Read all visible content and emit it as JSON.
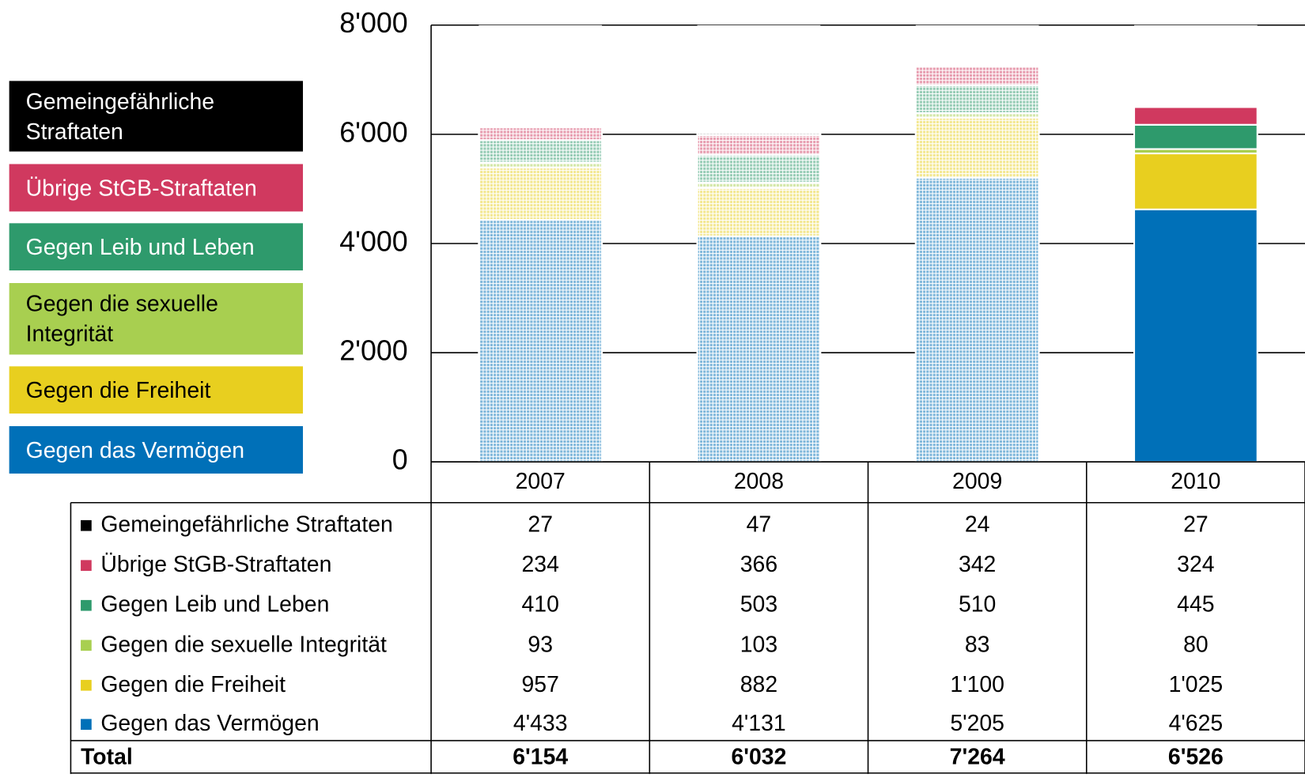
{
  "chart_data": {
    "type": "stacked_bar",
    "categories": [
      "2007",
      "2008",
      "2009",
      "2010"
    ],
    "series": [
      {
        "name": "Gegen das Vermögen",
        "color": "#0070b8",
        "values": [
          4433,
          4131,
          5205,
          4625
        ],
        "value_labels": [
          "4'433",
          "4'131",
          "5'205",
          "4'625"
        ]
      },
      {
        "name": "Gegen die Freiheit",
        "color": "#e8cf1f",
        "values": [
          957,
          882,
          1100,
          1025
        ],
        "value_labels": [
          "957",
          "882",
          "1'100",
          "1'025"
        ]
      },
      {
        "name": "Gegen die sexuelle Integrität",
        "color": "#a8cf50",
        "values": [
          93,
          103,
          83,
          80
        ]
      },
      {
        "name": "Gegen Leib und Leben",
        "color": "#2e9a6c",
        "values": [
          410,
          503,
          510,
          445
        ]
      },
      {
        "name": "Übrige StGB-Straftaten",
        "color": "#d0395f",
        "values": [
          234,
          366,
          342,
          324
        ]
      },
      {
        "name": "Gemeingefährliche Straftaten",
        "color": "#000000",
        "values": [
          27,
          47,
          24,
          27
        ]
      }
    ],
    "total_label": "Total",
    "totals": [
      6154,
      6032,
      7264,
      6526
    ],
    "totals_labels": [
      "6'154",
      "6'032",
      "7'264",
      "6'526"
    ],
    "hatched": [
      true,
      true,
      true,
      false
    ],
    "ylim": [
      0,
      8000
    ],
    "yticks": [
      0,
      {
        "value": 2000,
        "label": "2'000"
      },
      {
        "value": 4000,
        "label": "4'000"
      },
      {
        "value": 6000,
        "label": "6'000"
      },
      {
        "value": 8000,
        "label": "8'000"
      }
    ],
    "grid": true
  }
}
